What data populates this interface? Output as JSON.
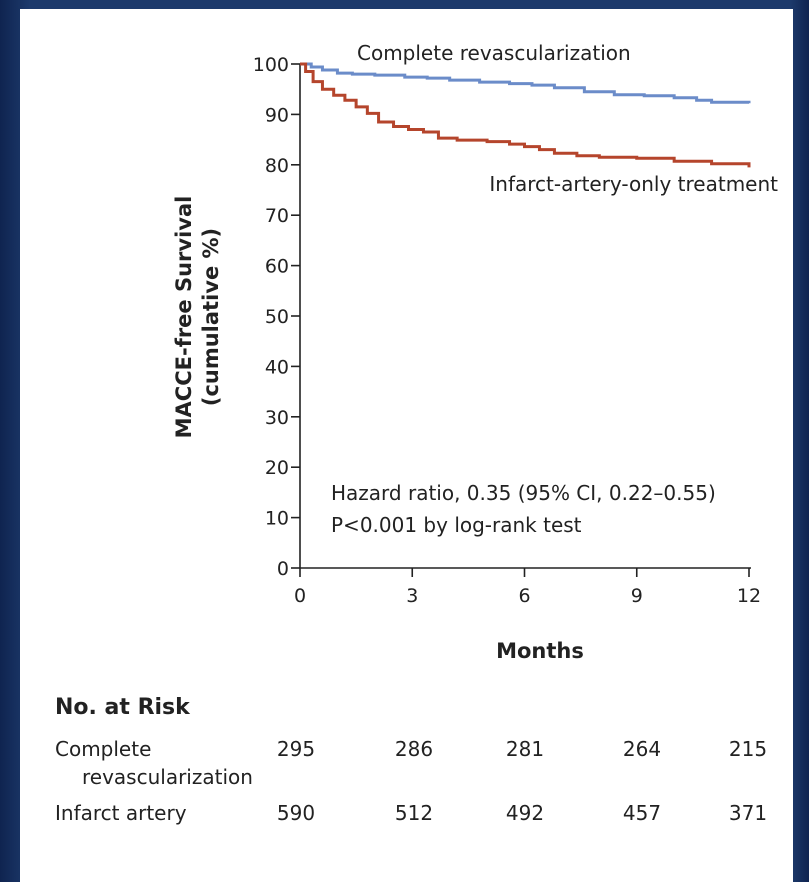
{
  "chart_data": {
    "type": "line",
    "xlabel": "Months",
    "ylabel": "MACCE-free Survival",
    "ylabel_sub": "(cumulative %)",
    "xlim": [
      0,
      12
    ],
    "ylim": [
      0,
      100
    ],
    "xticks": [
      "0",
      "3",
      "6",
      "9",
      "12"
    ],
    "yticks": [
      "0",
      "10",
      "20",
      "30",
      "40",
      "50",
      "60",
      "70",
      "80",
      "90",
      "100"
    ],
    "grid": false,
    "series": [
      {
        "name": "Complete revascularization",
        "color": "#6b8cc9",
        "x": [
          0,
          0.3,
          0.6,
          1.0,
          1.4,
          2,
          2.8,
          3.4,
          4,
          4.8,
          5.6,
          6.2,
          6.8,
          7.6,
          8.4,
          9.2,
          10,
          10.6,
          11,
          12
        ],
        "y": [
          100,
          99.4,
          98.8,
          98.2,
          98.0,
          97.8,
          97.4,
          97.2,
          96.8,
          96.4,
          96.1,
          95.8,
          95.3,
          94.5,
          93.9,
          93.7,
          93.3,
          92.8,
          92.4,
          92.2
        ]
      },
      {
        "name": "Infarct-artery-only treatment",
        "color": "#b5452c",
        "x": [
          0,
          0.15,
          0.35,
          0.6,
          0.9,
          1.2,
          1.5,
          1.8,
          2.1,
          2.5,
          2.9,
          3.3,
          3.7,
          4.2,
          5,
          5.6,
          6,
          6.4,
          6.8,
          7.4,
          8,
          9,
          10,
          11,
          12
        ],
        "y": [
          100,
          98.5,
          96.5,
          95,
          93.8,
          92.8,
          91.5,
          90.2,
          88.5,
          87.6,
          87,
          86.5,
          85.3,
          84.9,
          84.6,
          84.1,
          83.6,
          83,
          82.3,
          81.8,
          81.5,
          81.3,
          80.7,
          80.2,
          79.5
        ]
      }
    ],
    "annotations": [
      "Hazard ratio, 0.35 (95% CI, 0.22–0.55)",
      "P<0.001 by log-rank test"
    ]
  },
  "risk_table": {
    "title": "No. at Risk",
    "rows": [
      {
        "label_line1": "Complete",
        "label_line2": "revascularization",
        "values": [
          "295",
          "286",
          "281",
          "264",
          "215"
        ]
      },
      {
        "label_line1": "Infarct artery",
        "label_line2": "",
        "values": [
          "590",
          "512",
          "492",
          "457",
          "371"
        ]
      }
    ]
  }
}
